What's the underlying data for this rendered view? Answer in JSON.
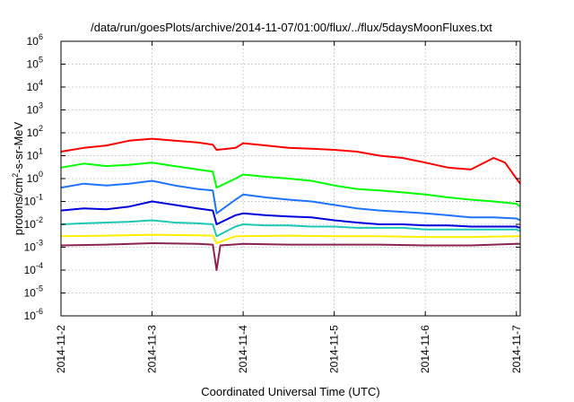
{
  "chart_data": {
    "type": "line",
    "title": "/data/run/goesPlots/archive/2014-11-07/01:00/flux/../flux/5daysMoonFluxes.txt",
    "xlabel": "Coordinated Universal Time (UTC)",
    "ylabel": {
      "pre": "protons/cm",
      "sup": "2",
      "post": "-s-sr-MeV"
    },
    "yscale": "log",
    "ylim": [
      1e-06,
      1000000.0
    ],
    "y_ticks": [
      {
        "base": "10",
        "exp": "-6",
        "value": 1e-06
      },
      {
        "base": "10",
        "exp": "-5",
        "value": 1e-05
      },
      {
        "base": "10",
        "exp": "-4",
        "value": 0.0001
      },
      {
        "base": "10",
        "exp": "-3",
        "value": 0.001
      },
      {
        "base": "10",
        "exp": "-2",
        "value": 0.01
      },
      {
        "base": "10",
        "exp": "-1",
        "value": 0.1
      },
      {
        "base": "10",
        "exp": "0",
        "value": 1
      },
      {
        "base": "10",
        "exp": "1",
        "value": 10
      },
      {
        "base": "10",
        "exp": "2",
        "value": 100
      },
      {
        "base": "10",
        "exp": "3",
        "value": 1000
      },
      {
        "base": "10",
        "exp": "4",
        "value": 10000
      },
      {
        "base": "10",
        "exp": "5",
        "value": 100000
      },
      {
        "base": "10",
        "exp": "6",
        "value": 1000000
      }
    ],
    "xlim": [
      "2014-11-02 00:00",
      "2014-11-07 01:00"
    ],
    "x_ticks": [
      {
        "label": "2014-11-2",
        "value": "2014-11-02"
      },
      {
        "label": "2014-11-3",
        "value": "2014-11-03"
      },
      {
        "label": "2014-11-4",
        "value": "2014-11-04"
      },
      {
        "label": "2014-11-5",
        "value": "2014-11-05"
      },
      {
        "label": "2014-11-6",
        "value": "2014-11-06"
      },
      {
        "label": "2014-11-7",
        "value": "2014-11-07"
      }
    ],
    "grid": true,
    "series": [
      {
        "color": "#ff0000",
        "x": [
          "2014-11-02 00:00",
          "2014-11-02 06:00",
          "2014-11-02 12:00",
          "2014-11-02 18:00",
          "2014-11-03 00:00",
          "2014-11-03 06:00",
          "2014-11-03 12:00",
          "2014-11-03 16:00",
          "2014-11-03 17:00",
          "2014-11-03 22:00",
          "2014-11-04 00:00",
          "2014-11-04 06:00",
          "2014-11-04 12:00",
          "2014-11-04 18:00",
          "2014-11-05 00:00",
          "2014-11-05 06:00",
          "2014-11-05 12:00",
          "2014-11-05 18:00",
          "2014-11-06 00:00",
          "2014-11-06 06:00",
          "2014-11-06 12:00",
          "2014-11-06 18:00",
          "2014-11-06 21:00",
          "2014-11-07 00:00",
          "2014-11-07 01:00"
        ],
        "y": [
          15,
          22,
          28,
          45,
          55,
          45,
          38,
          30,
          18,
          22,
          35,
          28,
          22,
          20,
          18,
          15,
          10,
          8,
          5,
          3,
          2.5,
          8,
          5,
          1,
          0.6
        ]
      },
      {
        "color": "#00ff00",
        "x": [
          "2014-11-02 00:00",
          "2014-11-02 06:00",
          "2014-11-02 12:00",
          "2014-11-02 18:00",
          "2014-11-03 00:00",
          "2014-11-03 06:00",
          "2014-11-03 12:00",
          "2014-11-03 16:00",
          "2014-11-03 17:00",
          "2014-11-03 22:00",
          "2014-11-04 00:00",
          "2014-11-04 06:00",
          "2014-11-04 12:00",
          "2014-11-04 18:00",
          "2014-11-05 00:00",
          "2014-11-05 06:00",
          "2014-11-05 12:00",
          "2014-11-05 18:00",
          "2014-11-06 00:00",
          "2014-11-06 06:00",
          "2014-11-06 12:00",
          "2014-11-06 18:00",
          "2014-11-07 00:00",
          "2014-11-07 01:00"
        ],
        "y": [
          3,
          4.5,
          3.5,
          4,
          5,
          3.5,
          2.5,
          2,
          0.4,
          1,
          1.5,
          1.2,
          1,
          0.8,
          0.5,
          0.35,
          0.3,
          0.25,
          0.2,
          0.15,
          0.12,
          0.1,
          0.08,
          0.06
        ]
      },
      {
        "color": "#1e73ff",
        "x": [
          "2014-11-02 00:00",
          "2014-11-02 06:00",
          "2014-11-02 12:00",
          "2014-11-02 18:00",
          "2014-11-03 00:00",
          "2014-11-03 06:00",
          "2014-11-03 12:00",
          "2014-11-03 16:00",
          "2014-11-03 17:00",
          "2014-11-03 22:00",
          "2014-11-04 00:00",
          "2014-11-04 06:00",
          "2014-11-04 12:00",
          "2014-11-04 18:00",
          "2014-11-05 00:00",
          "2014-11-05 06:00",
          "2014-11-05 12:00",
          "2014-11-05 18:00",
          "2014-11-06 00:00",
          "2014-11-06 06:00",
          "2014-11-06 12:00",
          "2014-11-06 18:00",
          "2014-11-07 00:00",
          "2014-11-07 01:00"
        ],
        "y": [
          0.4,
          0.6,
          0.5,
          0.6,
          0.8,
          0.5,
          0.35,
          0.3,
          0.03,
          0.12,
          0.2,
          0.15,
          0.12,
          0.1,
          0.07,
          0.05,
          0.04,
          0.035,
          0.03,
          0.025,
          0.02,
          0.02,
          0.018,
          0.015
        ]
      },
      {
        "color": "#0000dd",
        "x": [
          "2014-11-02 00:00",
          "2014-11-02 06:00",
          "2014-11-02 12:00",
          "2014-11-02 18:00",
          "2014-11-03 00:00",
          "2014-11-03 06:00",
          "2014-11-03 12:00",
          "2014-11-03 16:00",
          "2014-11-03 17:00",
          "2014-11-03 22:00",
          "2014-11-04 00:00",
          "2014-11-04 06:00",
          "2014-11-04 12:00",
          "2014-11-04 18:00",
          "2014-11-05 00:00",
          "2014-11-05 06:00",
          "2014-11-05 12:00",
          "2014-11-05 18:00",
          "2014-11-06 00:00",
          "2014-11-06 06:00",
          "2014-11-06 12:00",
          "2014-11-06 18:00",
          "2014-11-07 00:00",
          "2014-11-07 01:00"
        ],
        "y": [
          0.04,
          0.05,
          0.045,
          0.06,
          0.1,
          0.07,
          0.05,
          0.04,
          0.01,
          0.025,
          0.03,
          0.025,
          0.022,
          0.02,
          0.015,
          0.012,
          0.01,
          0.01,
          0.009,
          0.009,
          0.008,
          0.008,
          0.008,
          0.007
        ]
      },
      {
        "color": "#1ec8b4",
        "x": [
          "2014-11-02 00:00",
          "2014-11-02 06:00",
          "2014-11-02 12:00",
          "2014-11-02 18:00",
          "2014-11-03 00:00",
          "2014-11-03 06:00",
          "2014-11-03 12:00",
          "2014-11-03 16:00",
          "2014-11-03 17:00",
          "2014-11-03 22:00",
          "2014-11-04 00:00",
          "2014-11-04 06:00",
          "2014-11-04 12:00",
          "2014-11-04 18:00",
          "2014-11-05 00:00",
          "2014-11-05 06:00",
          "2014-11-05 12:00",
          "2014-11-05 18:00",
          "2014-11-06 00:00",
          "2014-11-06 06:00",
          "2014-11-06 12:00",
          "2014-11-06 18:00",
          "2014-11-07 00:00",
          "2014-11-07 01:00"
        ],
        "y": [
          0.01,
          0.011,
          0.012,
          0.013,
          0.015,
          0.012,
          0.011,
          0.01,
          0.003,
          0.008,
          0.01,
          0.009,
          0.009,
          0.008,
          0.008,
          0.007,
          0.007,
          0.007,
          0.006,
          0.006,
          0.006,
          0.006,
          0.006,
          0.005
        ]
      },
      {
        "color": "#ffee00",
        "x": [
          "2014-11-02 00:00",
          "2014-11-02 12:00",
          "2014-11-03 00:00",
          "2014-11-03 12:00",
          "2014-11-03 16:00",
          "2014-11-03 17:00",
          "2014-11-03 22:00",
          "2014-11-04 12:00",
          "2014-11-05 00:00",
          "2014-11-05 12:00",
          "2014-11-06 00:00",
          "2014-11-06 12:00",
          "2014-11-07 00:00",
          "2014-11-07 01:00"
        ],
        "y": [
          0.003,
          0.0032,
          0.0035,
          0.0033,
          0.0032,
          0.0015,
          0.003,
          0.0032,
          0.003,
          0.003,
          0.0028,
          0.0028,
          0.003,
          0.003
        ]
      },
      {
        "color": "#8b2252",
        "x": [
          "2014-11-02 00:00",
          "2014-11-02 12:00",
          "2014-11-03 00:00",
          "2014-11-03 12:00",
          "2014-11-03 16:00",
          "2014-11-03 17:00",
          "2014-11-03 18:00",
          "2014-11-04 00:00",
          "2014-11-04 12:00",
          "2014-11-05 00:00",
          "2014-11-05 12:00",
          "2014-11-06 00:00",
          "2014-11-06 12:00",
          "2014-11-07 00:00",
          "2014-11-07 01:00"
        ],
        "y": [
          0.0012,
          0.0013,
          0.0015,
          0.0014,
          0.0013,
          0.0001,
          0.0012,
          0.0014,
          0.0013,
          0.0013,
          0.0013,
          0.0012,
          0.0012,
          0.0014,
          0.0014
        ]
      }
    ]
  }
}
